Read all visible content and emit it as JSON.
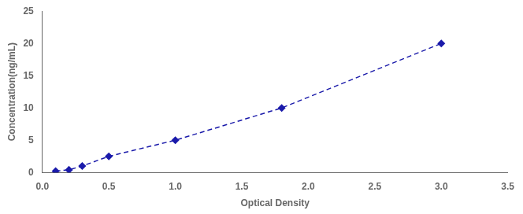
{
  "chart_data": {
    "type": "line",
    "x": [
      0.1,
      0.2,
      0.3,
      0.5,
      1.0,
      1.8,
      3.0
    ],
    "values": [
      0.2,
      0.4,
      1.0,
      2.5,
      5.0,
      10.0,
      20.0
    ],
    "color": "#1a1aaa",
    "marker": "diamond",
    "line_style": "dashed",
    "xlabel": "Optical Density",
    "ylabel": "Concentration(ng/mL)",
    "xlim": [
      0,
      3.5
    ],
    "ylim": [
      0,
      25
    ],
    "xticks": [
      {
        "value": 0,
        "label": "0.0"
      },
      0.5,
      {
        "value": 1,
        "label": "1.0"
      },
      1.5,
      {
        "value": 2,
        "label": "2.0"
      },
      2.5,
      {
        "value": 3,
        "label": "3.0"
      },
      3.5
    ],
    "yticks": [
      0,
      5,
      10,
      15,
      20,
      25
    ],
    "grid": false
  }
}
